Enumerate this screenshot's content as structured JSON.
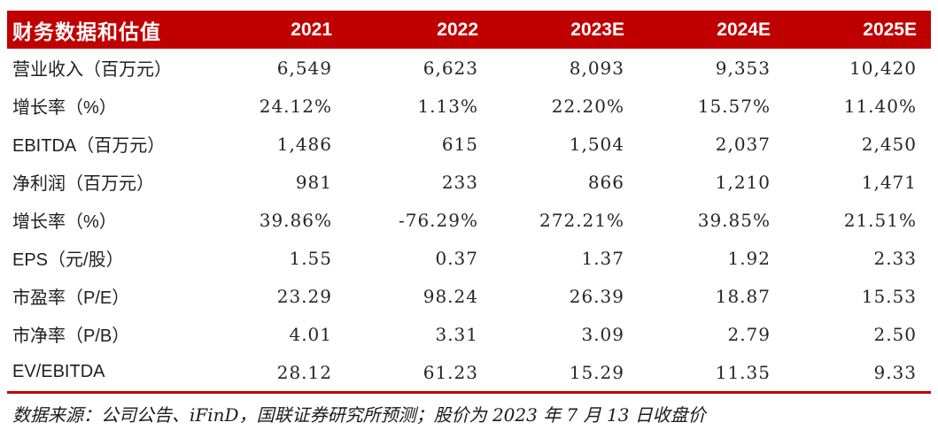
{
  "colors": {
    "accent_red": "#C00000",
    "header_text": "#FFFFFF",
    "body_text": "#1F1F1F"
  },
  "table": {
    "title": "财务数据和估值",
    "year_columns": [
      "2021",
      "2022",
      "2023E",
      "2024E",
      "2025E"
    ],
    "rows": [
      {
        "label": "营业收入（百万元）",
        "values": [
          "6,549",
          "6,623",
          "8,093",
          "9,353",
          "10,420"
        ]
      },
      {
        "label": "增长率（%）",
        "values": [
          "24.12%",
          "1.13%",
          "22.20%",
          "15.57%",
          "11.40%"
        ]
      },
      {
        "label": "EBITDA（百万元）",
        "values": [
          "1,486",
          "615",
          "1,504",
          "2,037",
          "2,450"
        ]
      },
      {
        "label": "净利润（百万元）",
        "values": [
          "981",
          "233",
          "866",
          "1,210",
          "1,471"
        ]
      },
      {
        "label": "增长率（%）",
        "values": [
          "39.86%",
          "-76.29%",
          "272.21%",
          "39.85%",
          "21.51%"
        ]
      },
      {
        "label": "EPS（元/股）",
        "values": [
          "1.55",
          "0.37",
          "1.37",
          "1.92",
          "2.33"
        ]
      },
      {
        "label": "市盈率（P/E）",
        "values": [
          "23.29",
          "98.24",
          "26.39",
          "18.87",
          "15.53"
        ]
      },
      {
        "label": "市净率（P/B）",
        "values": [
          "4.01",
          "3.31",
          "3.09",
          "2.79",
          "2.50"
        ]
      },
      {
        "label": "EV/EBITDA",
        "values": [
          "28.12",
          "61.23",
          "15.29",
          "11.35",
          "9.33"
        ]
      }
    ]
  },
  "footer": {
    "source_note": "数据来源：公司公告、iFinD，国联证券研究所预测；股价为 2023 年 7 月 13 日收盘价"
  }
}
